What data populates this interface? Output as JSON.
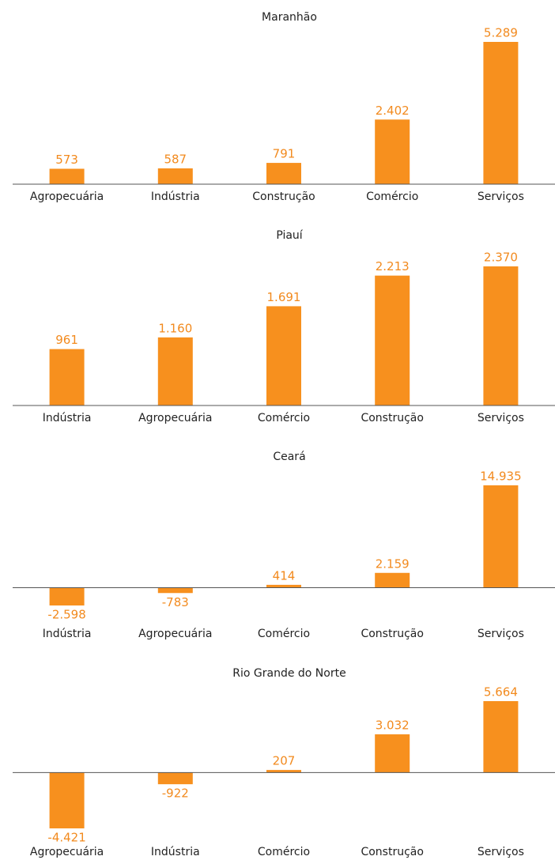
{
  "chart_data": [
    {
      "type": "bar",
      "title": "Maranhão",
      "categories": [
        "Agropecuária",
        "Indústria",
        "Construção",
        "Comércio",
        "Serviços"
      ],
      "values": [
        573,
        587,
        791,
        2402,
        5289
      ],
      "value_labels": [
        "573",
        "587",
        "791",
        "2.402",
        "5.289"
      ],
      "color": "#f7901e"
    },
    {
      "type": "bar",
      "title": "Piauí",
      "categories": [
        "Indústria",
        "Agropecuária",
        "Comércio",
        "Construção",
        "Serviços"
      ],
      "values": [
        961,
        1160,
        1691,
        2213,
        2370
      ],
      "value_labels": [
        "961",
        "1.160",
        "1.691",
        "2.213",
        "2.370"
      ],
      "color": "#f7901e"
    },
    {
      "type": "bar",
      "title": "Ceará",
      "categories": [
        "Indústria",
        "Agropecuária",
        "Comércio",
        "Construção",
        "Serviços"
      ],
      "values": [
        -2598,
        -783,
        414,
        2159,
        14935
      ],
      "value_labels": [
        "-2.598",
        "-783",
        "414",
        "2.159",
        "14.935"
      ],
      "color": "#f7901e"
    },
    {
      "type": "bar",
      "title": "Rio Grande do Norte",
      "categories": [
        "Agropecuária",
        "Indústria",
        "Comércio",
        "Construção",
        "Serviços"
      ],
      "values": [
        -4421,
        -922,
        207,
        3032,
        5664
      ],
      "value_labels": [
        "-4.421",
        "-922",
        "207",
        "3.032",
        "5.664"
      ],
      "color": "#f7901e"
    }
  ]
}
